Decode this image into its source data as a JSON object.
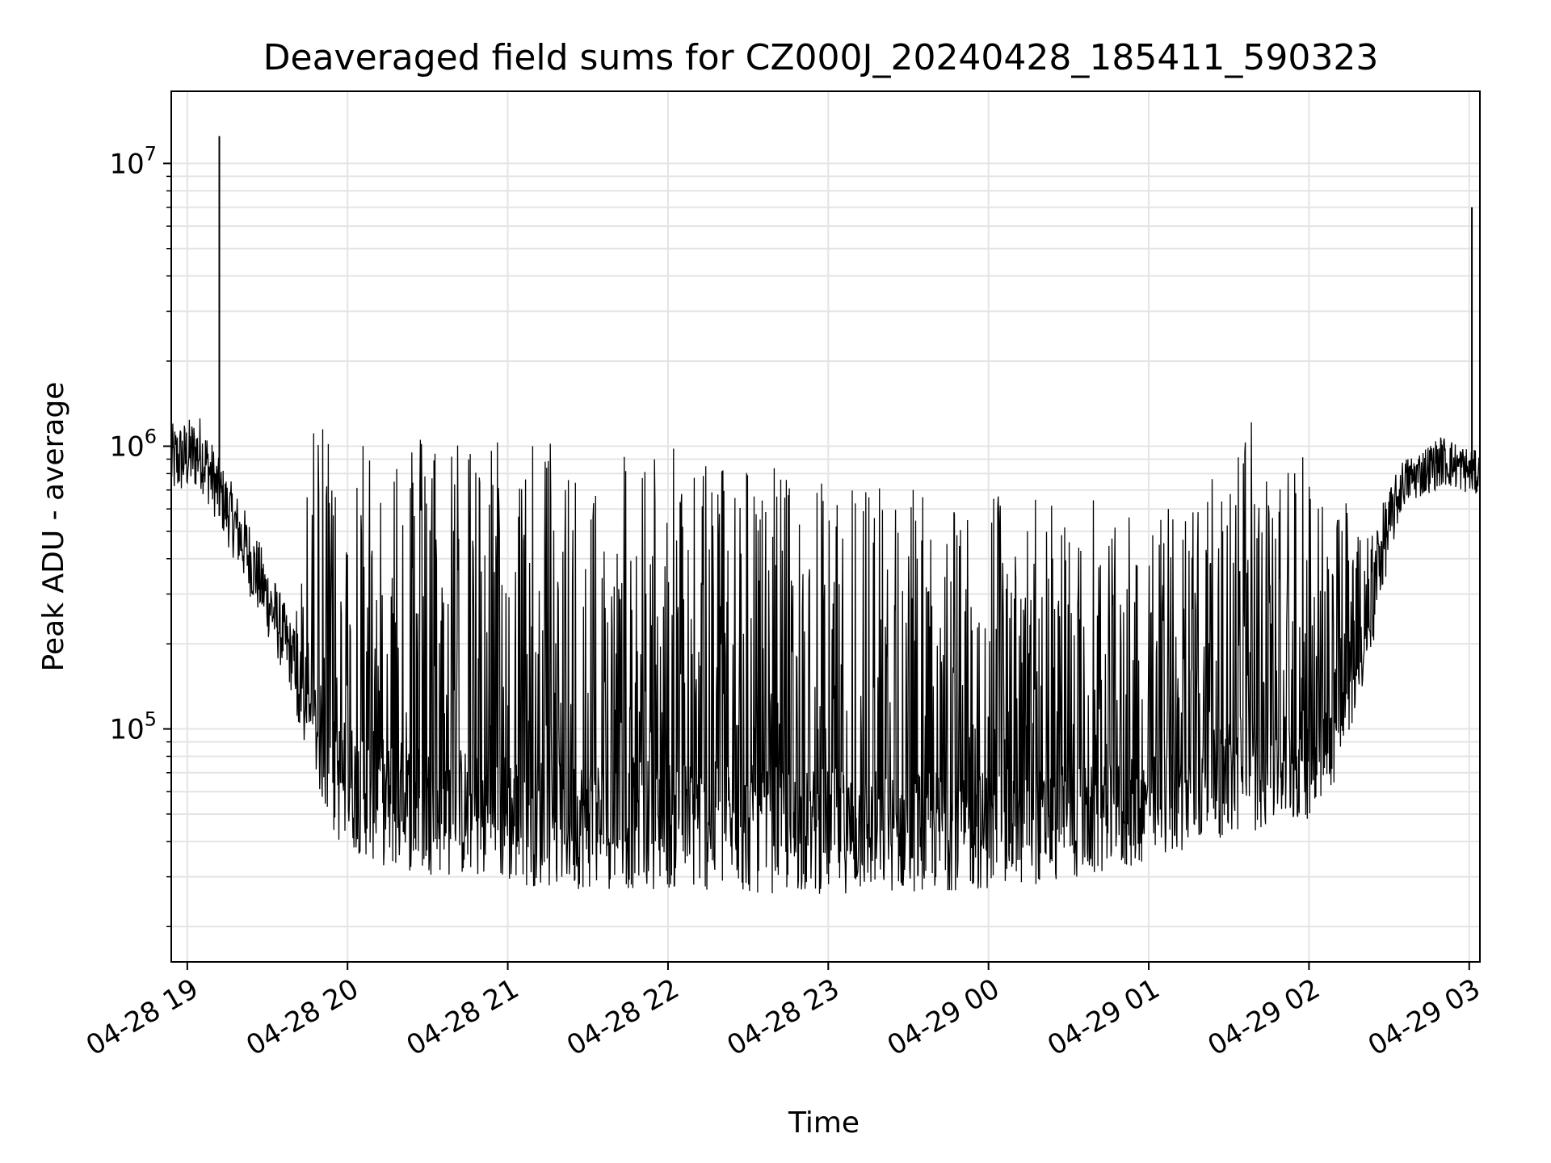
{
  "chart_data": {
    "type": "line",
    "title": "Deaveraged field sums for CZ000J_20240428_185411_590323",
    "xlabel": "Time",
    "ylabel": "Peak ADU - average",
    "yscale": "log",
    "ylim": [
      15000,
      18000000
    ],
    "xlim": [
      "2024-04-28T18:54",
      "2024-04-29T03:04"
    ],
    "x_ticks": [
      {
        "t": "2024-04-28T19:00",
        "label": "04-28 19"
      },
      {
        "t": "2024-04-28T20:00",
        "label": "04-28 20"
      },
      {
        "t": "2024-04-28T21:00",
        "label": "04-28 21"
      },
      {
        "t": "2024-04-28T22:00",
        "label": "04-28 22"
      },
      {
        "t": "2024-04-28T23:00",
        "label": "04-28 23"
      },
      {
        "t": "2024-04-29T00:00",
        "label": "04-29 00"
      },
      {
        "t": "2024-04-29T01:00",
        "label": "04-29 01"
      },
      {
        "t": "2024-04-29T02:00",
        "label": "04-29 02"
      },
      {
        "t": "2024-04-29T03:00",
        "label": "04-29 03"
      }
    ],
    "y_ticks": [
      {
        "value": 100000,
        "base": "10",
        "exp": "5"
      },
      {
        "value": 1000000,
        "base": "10",
        "exp": "6"
      },
      {
        "value": 10000000,
        "base": "10",
        "exp": "7"
      }
    ],
    "grid": true,
    "line_color": "#000000",
    "series": [
      {
        "envelope": [
          {
            "t": "2024-04-28T18:54",
            "low": 550000,
            "high": 1200000
          },
          {
            "t": "2024-04-28T19:05",
            "low": 600000,
            "high": 1300000
          },
          {
            "t": "2024-04-28T19:12",
            "low": 450000,
            "high": 900000
          },
          {
            "t": "2024-04-28T19:20",
            "low": 300000,
            "high": 650000
          },
          {
            "t": "2024-04-28T19:30",
            "low": 180000,
            "high": 400000
          },
          {
            "t": "2024-04-28T19:40",
            "low": 110000,
            "high": 230000
          },
          {
            "t": "2024-04-28T19:48",
            "low": 65000,
            "high": 1300000
          },
          {
            "t": "2024-04-28T19:55",
            "low": 40000,
            "high": 1300000
          },
          {
            "t": "2024-04-28T20:15",
            "low": 32000,
            "high": 1150000
          },
          {
            "t": "2024-04-28T21:00",
            "low": 28000,
            "high": 1100000
          },
          {
            "t": "2024-04-28T21:30",
            "low": 27000,
            "high": 1050000
          },
          {
            "t": "2024-04-28T22:00",
            "low": 27000,
            "high": 1000000
          },
          {
            "t": "2024-04-28T22:30",
            "low": 26000,
            "high": 900000
          },
          {
            "t": "2024-04-28T23:00",
            "low": 26000,
            "high": 800000
          },
          {
            "t": "2024-04-29T00:00",
            "low": 27000,
            "high": 700000
          },
          {
            "t": "2024-04-29T00:45",
            "low": 30000,
            "high": 650000
          },
          {
            "t": "2024-04-29T01:15",
            "low": 38000,
            "high": 600000
          },
          {
            "t": "2024-04-29T01:35",
            "low": 42000,
            "high": 1300000
          },
          {
            "t": "2024-04-29T02:00",
            "low": 48000,
            "high": 950000
          },
          {
            "t": "2024-04-29T02:10",
            "low": 65000,
            "high": 700000
          },
          {
            "t": "2024-04-29T02:25",
            "low": 200000,
            "high": 550000
          },
          {
            "t": "2024-04-29T02:35",
            "low": 550000,
            "high": 900000
          },
          {
            "t": "2024-04-29T02:50",
            "low": 650000,
            "high": 1100000
          },
          {
            "t": "2024-04-29T03:04",
            "low": 600000,
            "high": 950000
          }
        ],
        "spikes": [
          {
            "t": "2024-04-28T19:12",
            "value": 12500000
          },
          {
            "t": "2024-04-29T03:01",
            "value": 7000000
          }
        ]
      }
    ]
  }
}
